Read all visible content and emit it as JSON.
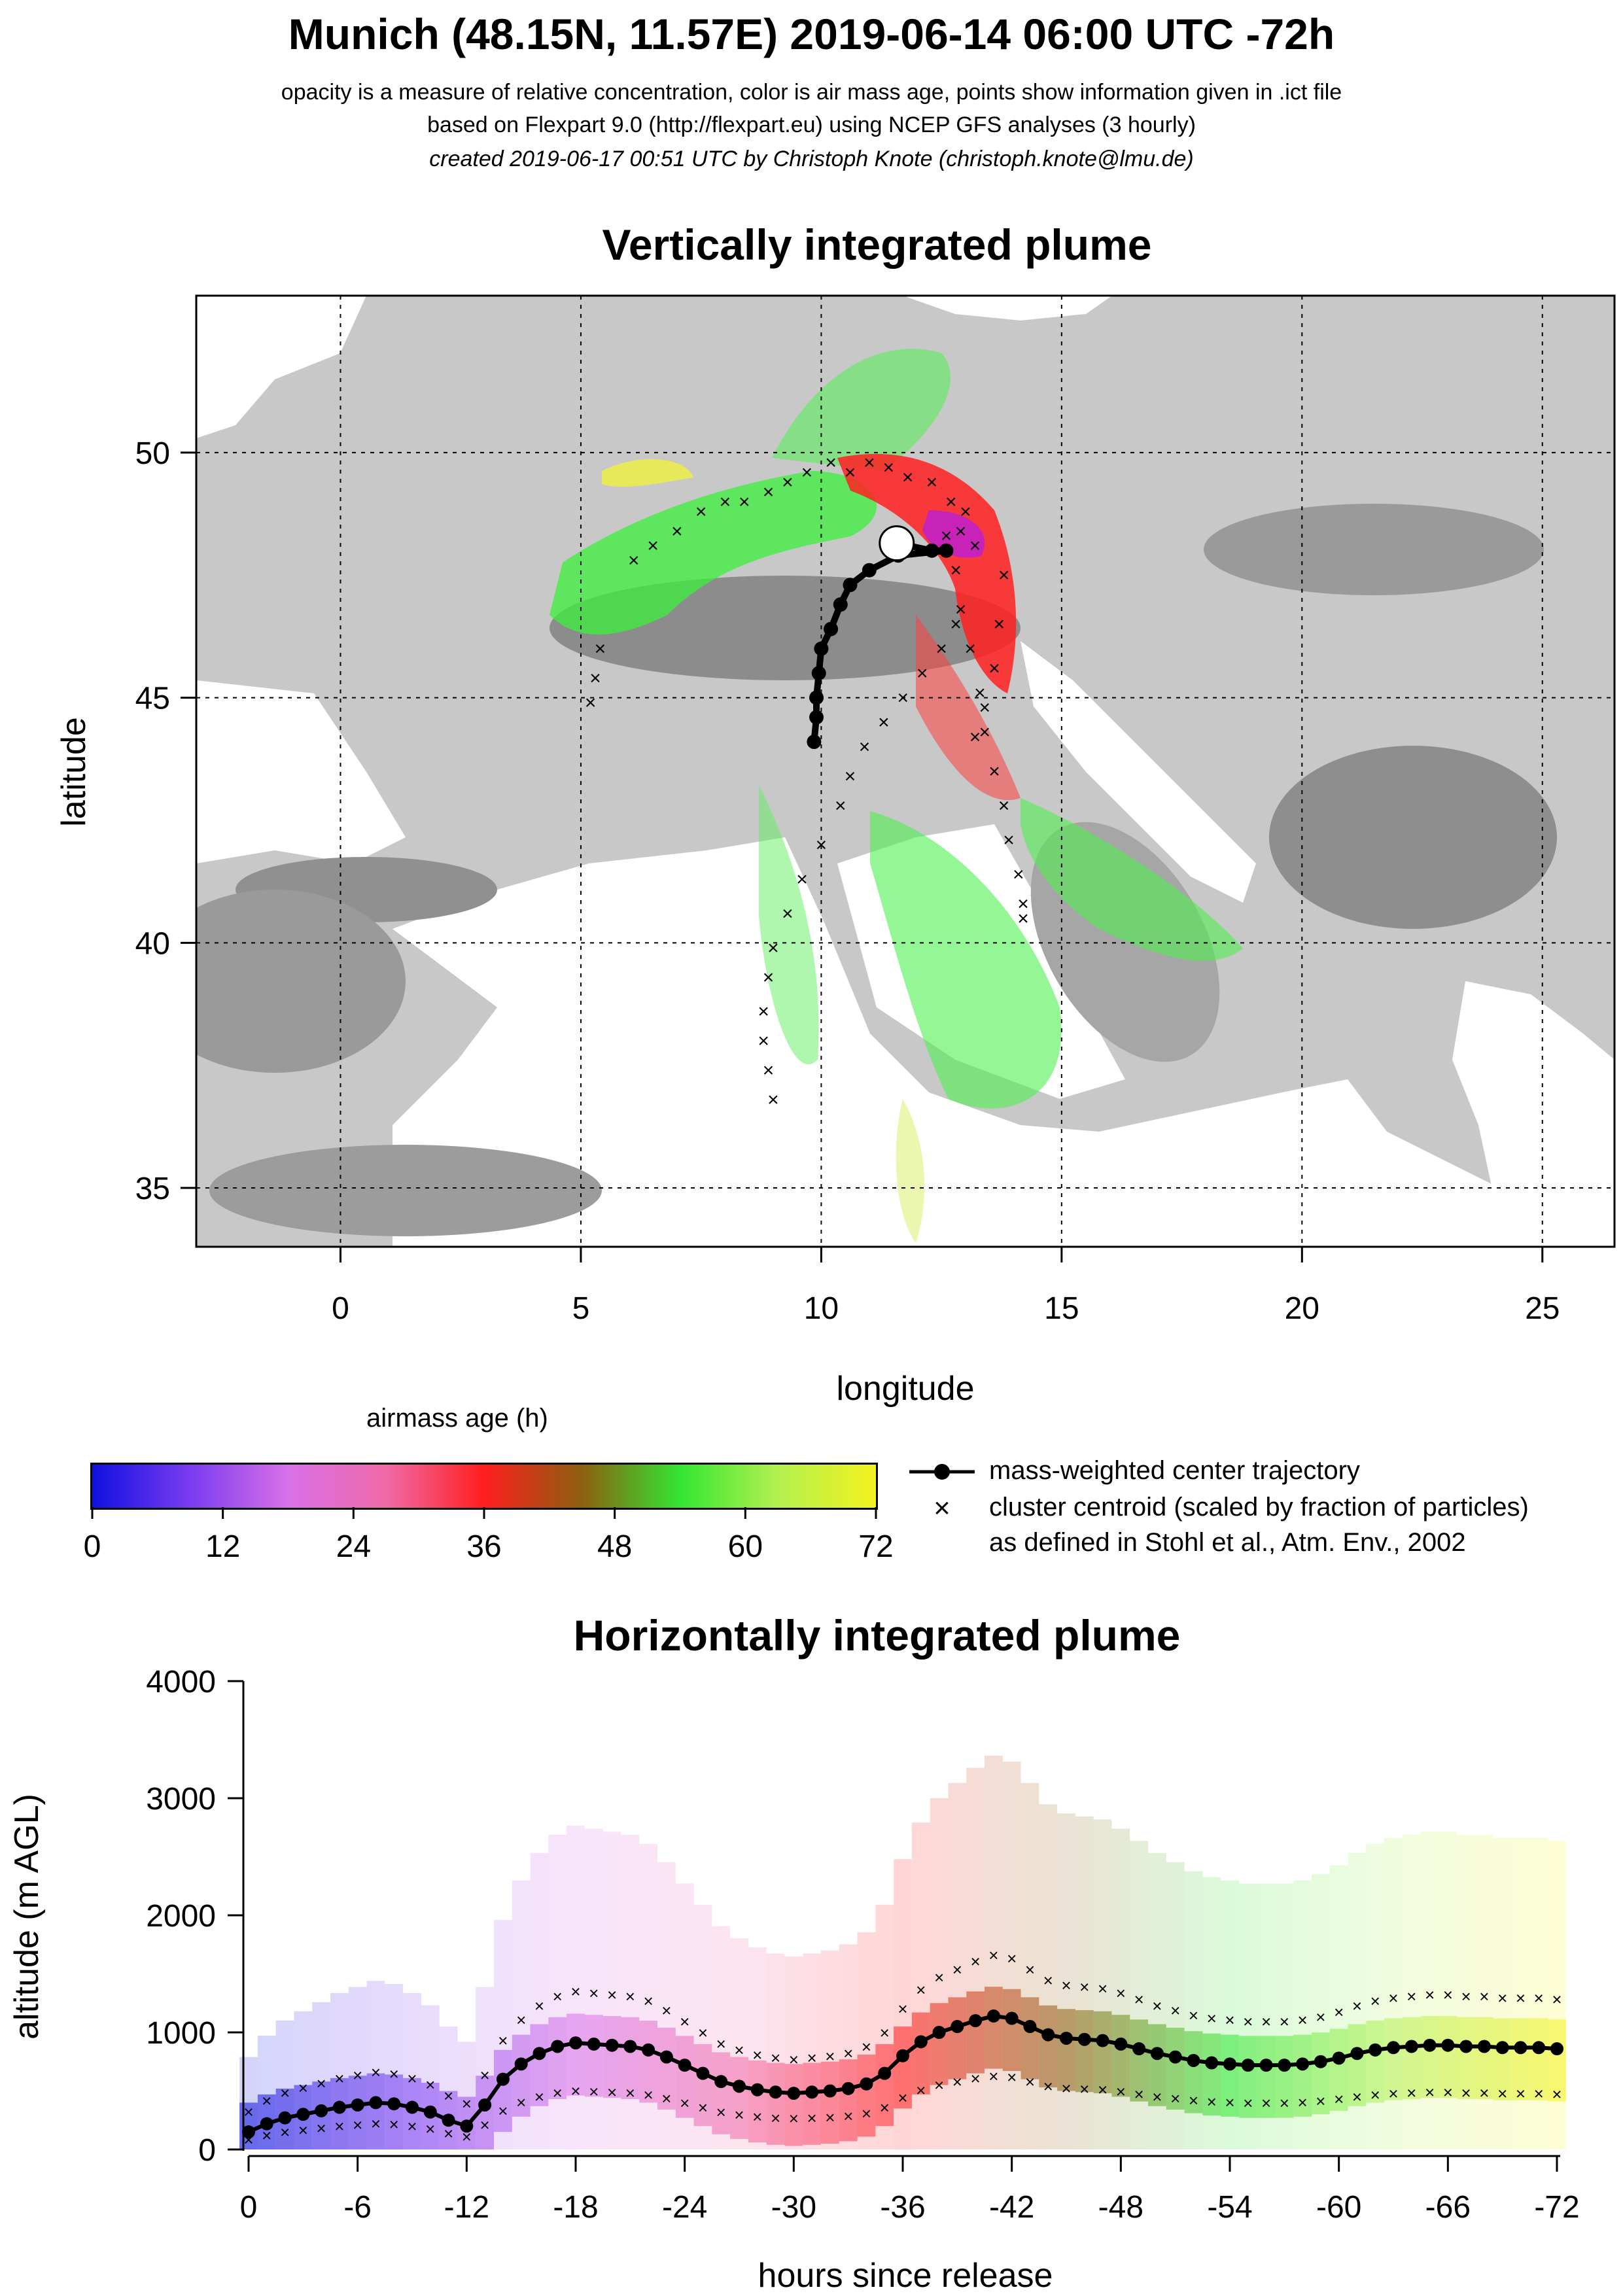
{
  "header": {
    "title": "Munich (48.15N, 11.57E) 2019-06-14 06:00 UTC -72h",
    "subtitle_1": "opacity is a measure of relative concentration, color is air mass age, points show information given in .ict file",
    "subtitle_2": "based on Flexpart 9.0 (http://flexpart.eu) using NCEP GFS analyses (3 hourly)",
    "subtitle_3": "created 2019-06-17 00:51 UTC by Christoph Knote (christoph.knote@lmu.de)"
  },
  "colorbar": {
    "label": "airmass age (h)",
    "ticks": [
      "0",
      "12",
      "24",
      "36",
      "48",
      "60",
      "72"
    ],
    "stops": [
      "#1010e0",
      "#7a3cf0",
      "#d870e8",
      "#f06aa8",
      "#ff1e1e",
      "#8c6010",
      "#32e632",
      "#b4f050",
      "#f2f21e"
    ]
  },
  "legend": {
    "trajectory_label": "mass-weighted center trajectory",
    "centroid_label": "cluster centroid (scaled by fraction of particles)",
    "centroid_label_2": "as defined in Stohl et al., Atm. Env., 2002"
  },
  "chart_data": [
    {
      "type": "scatter",
      "title": "Vertically integrated plume",
      "xlabel": "longitude",
      "ylabel": "latitude",
      "xlim": [
        -3,
        26.5
      ],
      "ylim": [
        33.8,
        53.2
      ],
      "x_ticks": [
        "0",
        "5",
        "10",
        "15",
        "20",
        "25"
      ],
      "y_ticks": [
        "35",
        "40",
        "45",
        "50"
      ],
      "release_point": {
        "lon": 11.57,
        "lat": 48.15
      },
      "series": [
        {
          "role": "center-trajectory",
          "points": [
            [
              11.57,
              48.15
            ],
            [
              12.3,
              48.0
            ],
            [
              12.6,
              48.0
            ],
            [
              11.6,
              47.9
            ],
            [
              11.0,
              47.6
            ],
            [
              10.6,
              47.3
            ],
            [
              10.4,
              46.9
            ],
            [
              10.2,
              46.4
            ],
            [
              10.0,
              46.0
            ],
            [
              9.95,
              45.5
            ],
            [
              9.9,
              45.0
            ],
            [
              9.9,
              44.6
            ],
            [
              9.85,
              44.1
            ]
          ]
        },
        {
          "role": "cluster-centroids",
          "points": [
            [
              6.1,
              47.8
            ],
            [
              6.5,
              48.1
            ],
            [
              7.0,
              48.4
            ],
            [
              7.5,
              48.8
            ],
            [
              8.0,
              49.0
            ],
            [
              8.4,
              49.0
            ],
            [
              8.9,
              49.2
            ],
            [
              9.3,
              49.4
            ],
            [
              9.7,
              49.6
            ],
            [
              10.2,
              49.8
            ],
            [
              10.6,
              49.6
            ],
            [
              11.0,
              49.8
            ],
            [
              11.4,
              49.7
            ],
            [
              11.8,
              49.5
            ],
            [
              12.3,
              49.4
            ],
            [
              12.7,
              49.0
            ],
            [
              13.0,
              48.8
            ],
            [
              12.9,
              48.4
            ],
            [
              13.2,
              48.1
            ],
            [
              12.6,
              48.3
            ],
            [
              5.4,
              46.0
            ],
            [
              5.3,
              45.4
            ],
            [
              5.2,
              44.9
            ],
            [
              12.8,
              47.6
            ],
            [
              12.9,
              46.8
            ],
            [
              13.1,
              46.0
            ],
            [
              13.3,
              45.1
            ],
            [
              13.4,
              44.3
            ],
            [
              13.6,
              43.5
            ],
            [
              13.8,
              42.8
            ],
            [
              13.9,
              42.1
            ],
            [
              14.1,
              41.4
            ],
            [
              14.2,
              40.8
            ],
            [
              14.2,
              40.5
            ],
            [
              13.8,
              47.5
            ],
            [
              13.7,
              46.5
            ],
            [
              13.6,
              45.6
            ],
            [
              13.4,
              44.8
            ],
            [
              13.2,
              44.2
            ],
            [
              12.8,
              46.5
            ],
            [
              12.5,
              46.0
            ],
            [
              12.1,
              45.5
            ],
            [
              11.7,
              45.0
            ],
            [
              11.3,
              44.5
            ],
            [
              10.9,
              44.0
            ],
            [
              10.6,
              43.4
            ],
            [
              10.4,
              42.8
            ],
            [
              10.0,
              42.0
            ],
            [
              9.6,
              41.3
            ],
            [
              9.3,
              40.6
            ],
            [
              9.0,
              39.9
            ],
            [
              8.9,
              39.3
            ],
            [
              8.8,
              38.6
            ],
            [
              8.8,
              38.0
            ],
            [
              8.9,
              37.4
            ],
            [
              9.0,
              36.8
            ]
          ]
        }
      ]
    },
    {
      "type": "line",
      "title": "Horizontally integrated plume",
      "xlabel": "hours since release",
      "ylabel": "altitude (m AGL)",
      "xlim": [
        0,
        -72
      ],
      "ylim": [
        0,
        4000
      ],
      "x_ticks": [
        "0",
        "-6",
        "-12",
        "-18",
        "-24",
        "-30",
        "-36",
        "-42",
        "-48",
        "-54",
        "-60",
        "-66",
        "-72"
      ],
      "y_ticks": [
        "0",
        "1000",
        "2000",
        "3000",
        "4000"
      ],
      "series": [
        {
          "role": "center-trajectory",
          "x": [
            0,
            -1,
            -2,
            -3,
            -4,
            -5,
            -6,
            -7,
            -8,
            -9,
            -10,
            -11,
            -12,
            -13,
            -14,
            -15,
            -16,
            -17,
            -18,
            -19,
            -20,
            -21,
            -22,
            -23,
            -24,
            -25,
            -26,
            -27,
            -28,
            -29,
            -30,
            -31,
            -32,
            -33,
            -34,
            -35,
            -36,
            -37,
            -38,
            -39,
            -40,
            -41,
            -42,
            -43,
            -44,
            -45,
            -46,
            -47,
            -48,
            -49,
            -50,
            -51,
            -52,
            -53,
            -54,
            -55,
            -56,
            -57,
            -58,
            -59,
            -60,
            -61,
            -62,
            -63,
            -64,
            -65,
            -66,
            -67,
            -68,
            -69,
            -70,
            -71,
            -72
          ],
          "y": [
            150,
            220,
            270,
            300,
            330,
            360,
            380,
            400,
            390,
            360,
            320,
            250,
            200,
            380,
            600,
            730,
            820,
            880,
            910,
            900,
            890,
            880,
            850,
            790,
            720,
            650,
            580,
            540,
            510,
            490,
            480,
            490,
            500,
            520,
            560,
            650,
            800,
            920,
            1000,
            1050,
            1100,
            1140,
            1120,
            1050,
            980,
            950,
            940,
            930,
            900,
            860,
            820,
            790,
            760,
            740,
            730,
            720,
            720,
            720,
            730,
            750,
            780,
            820,
            850,
            870,
            880,
            890,
            890,
            880,
            880,
            870,
            870,
            870,
            860
          ]
        }
      ]
    }
  ]
}
